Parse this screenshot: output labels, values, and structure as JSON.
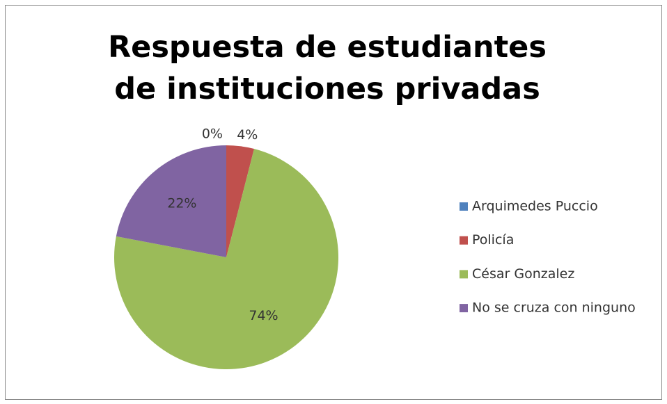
{
  "chart_data": {
    "type": "pie",
    "title": "Respuesta de estudiantes de instituciones privadas",
    "categories": [
      "Arquimedes Puccio",
      "Policía",
      "César Gonzalez",
      "No se cruza con ninguno"
    ],
    "values": [
      0,
      4,
      74,
      22
    ],
    "value_labels": [
      "0%",
      "4%",
      "74%",
      "22%"
    ],
    "colors": [
      "#4f81bd",
      "#c0504d",
      "#9bbb59",
      "#8064a2"
    ],
    "legend": "right"
  }
}
